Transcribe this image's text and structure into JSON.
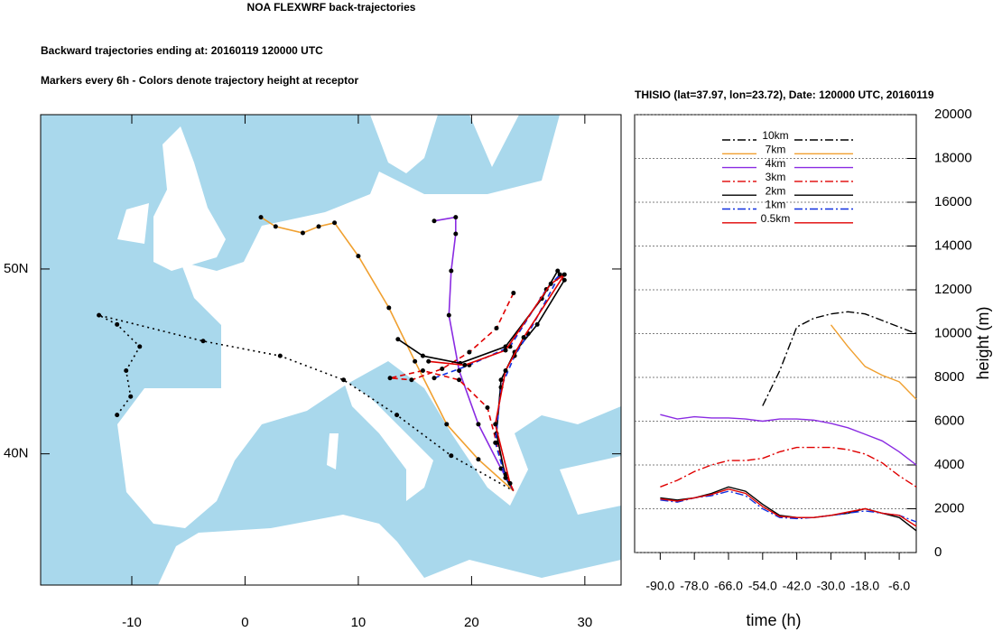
{
  "chart_data": [
    {
      "type": "map",
      "title": "NOA FLEXWRF back-trajectories",
      "subtitle": "Backward trajectories ending at: 20160119  120000 UTC",
      "note": "Markers every 6h - Colors denote trajectory height at receptor",
      "xlim": [
        -18.05,
        33.2
      ],
      "ylim": [
        32.9,
        58.35
      ],
      "xticks": [
        -10,
        0,
        10,
        20,
        30
      ],
      "yticks": [
        {
          "value": 40,
          "label": "40N"
        },
        {
          "value": 50,
          "label": "50N"
        }
      ],
      "series": [
        {
          "color": "#000000",
          "dash": "dotted",
          "x": [
            -11.3,
            -10.1,
            -10.5,
            -9.3,
            -11.3,
            -12.9,
            -3.7,
            3.1,
            8.7,
            13.4,
            18.2,
            23.7
          ],
          "y": [
            42.1,
            43.1,
            44.5,
            45.8,
            47.0,
            47.5,
            46.1,
            45.3,
            44.0,
            42.1,
            39.9,
            38.0
          ]
        },
        {
          "color": "#f0a030",
          "dash": "solid",
          "x": [
            1.4,
            2.7,
            5.1,
            6.5,
            7.9,
            10.0,
            12.7,
            15.0,
            17.8,
            20.6,
            23.7
          ],
          "y": [
            52.8,
            52.3,
            51.95,
            52.3,
            52.5,
            50.7,
            47.9,
            45.0,
            41.6,
            39.7,
            38.0
          ]
        },
        {
          "color": "#8a2be2",
          "dash": "solid",
          "x": [
            16.7,
            18.6,
            18.6,
            18.2,
            18.0,
            18.9,
            20.6,
            22.6,
            23.7
          ],
          "y": [
            52.6,
            52.8,
            51.9,
            49.9,
            47.5,
            44.5,
            41.6,
            39.2,
            38.0
          ]
        },
        {
          "color": "#e00000",
          "dash": "dashed",
          "x": [
            23.7,
            22.2,
            19.8,
            17.4,
            14.7,
            12.8,
            15.7,
            18.9,
            21.4,
            22.2,
            23.0,
            23.7
          ],
          "y": [
            48.7,
            46.8,
            45.5,
            44.6,
            44.0,
            44.1,
            44.5,
            44.0,
            42.5,
            40.6,
            38.9,
            38.0
          ]
        },
        {
          "color": "#000000",
          "dash": "solid",
          "x": [
            13.5,
            15.7,
            19.0,
            23.0,
            26.2,
            27.6,
            28.2,
            25.8,
            23.8,
            22.6,
            22.2,
            23.0,
            23.7
          ],
          "y": [
            46.2,
            45.3,
            44.9,
            45.8,
            48.4,
            49.9,
            49.4,
            47.0,
            45.5,
            44.0,
            41.1,
            38.7,
            38.0
          ]
        },
        {
          "color": "#1030e0",
          "dash": "dashed",
          "x": [
            16.7,
            19.8,
            23.4,
            26.6,
            27.8,
            25.0,
            23.8,
            22.6,
            22.1,
            23.0,
            23.7
          ],
          "y": [
            44.1,
            44.8,
            45.8,
            48.9,
            49.7,
            46.5,
            45.3,
            43.6,
            40.6,
            38.7,
            38.0
          ]
        },
        {
          "color": "#e00000",
          "dash": "solid",
          "x": [
            16.2,
            19.4,
            23.0,
            27.0,
            28.2,
            24.6,
            23.0,
            22.1,
            23.4,
            23.7
          ],
          "y": [
            45.0,
            44.8,
            45.6,
            49.2,
            49.7,
            46.3,
            44.5,
            41.6,
            38.4,
            38.0
          ]
        }
      ]
    },
    {
      "type": "line",
      "title": "THISIO (lat=37.97,  lon=23.72), Date: 120000 UTC, 20160119",
      "x_label": "time (h)",
      "y_label": "height (m)",
      "xlim": [
        -99,
        0
      ],
      "ylim": [
        0,
        20000
      ],
      "xticks": [
        {
          "value": -90,
          "label": "-90.0"
        },
        {
          "value": -78,
          "label": "-78.0"
        },
        {
          "value": -66,
          "label": "-66.0"
        },
        {
          "value": -54,
          "label": "-54.0"
        },
        {
          "value": -42,
          "label": "-42.0"
        },
        {
          "value": -30,
          "label": "-30.0"
        },
        {
          "value": -18,
          "label": "-18.0"
        },
        {
          "value": -6,
          "label": "-6.0"
        }
      ],
      "yticks": [
        0,
        2000,
        4000,
        6000,
        8000,
        10000,
        12000,
        14000,
        16000,
        18000,
        20000
      ],
      "grid": true,
      "x": [
        -90,
        -84,
        -78,
        -72,
        -66,
        -60,
        -54,
        -48,
        -42,
        -36,
        -30,
        -24,
        -18,
        -12,
        -6,
        0
      ],
      "series": [
        {
          "name": "10km",
          "color": "#000000",
          "dash": "dashdot",
          "values": [
            null,
            null,
            null,
            null,
            null,
            null,
            6700,
            8300,
            10300,
            10700,
            10900,
            11000,
            10900,
            10600,
            10300,
            10000
          ]
        },
        {
          "name": "7km",
          "color": "#f0a030",
          "dash": "solid",
          "values": [
            null,
            null,
            null,
            null,
            null,
            null,
            null,
            null,
            null,
            null,
            10400,
            9400,
            8500,
            8100,
            7800,
            7000
          ]
        },
        {
          "name": "4km",
          "color": "#8a2be2",
          "dash": "solid",
          "values": [
            6300,
            6100,
            6200,
            6150,
            6150,
            6100,
            6000,
            6100,
            6100,
            6050,
            5900,
            5700,
            5400,
            5100,
            4600,
            4000
          ]
        },
        {
          "name": "3km",
          "color": "#e00000",
          "dash": "dashdot",
          "values": [
            3000,
            3300,
            3700,
            4000,
            4200,
            4200,
            4300,
            4600,
            4800,
            4800,
            4800,
            4700,
            4500,
            4100,
            3500,
            3000
          ]
        },
        {
          "name": "2km",
          "color": "#000000",
          "dash": "solid",
          "values": [
            2500,
            2400,
            2500,
            2700,
            3000,
            2800,
            2200,
            1700,
            1600,
            1600,
            1700,
            1800,
            2000,
            1800,
            1600,
            1000
          ]
        },
        {
          "name": "1km",
          "color": "#1030e0",
          "dash": "dashdot",
          "values": [
            2400,
            2300,
            2500,
            2600,
            2800,
            2600,
            2000,
            1600,
            1550,
            1600,
            1700,
            1800,
            1900,
            1800,
            1700,
            1400
          ]
        },
        {
          "name": "0.5km",
          "color": "#e00000",
          "dash": "solid",
          "values": [
            2450,
            2350,
            2500,
            2650,
            2900,
            2700,
            2100,
            1650,
            1600,
            1600,
            1700,
            1850,
            2000,
            1800,
            1700,
            1200
          ]
        }
      ]
    }
  ]
}
